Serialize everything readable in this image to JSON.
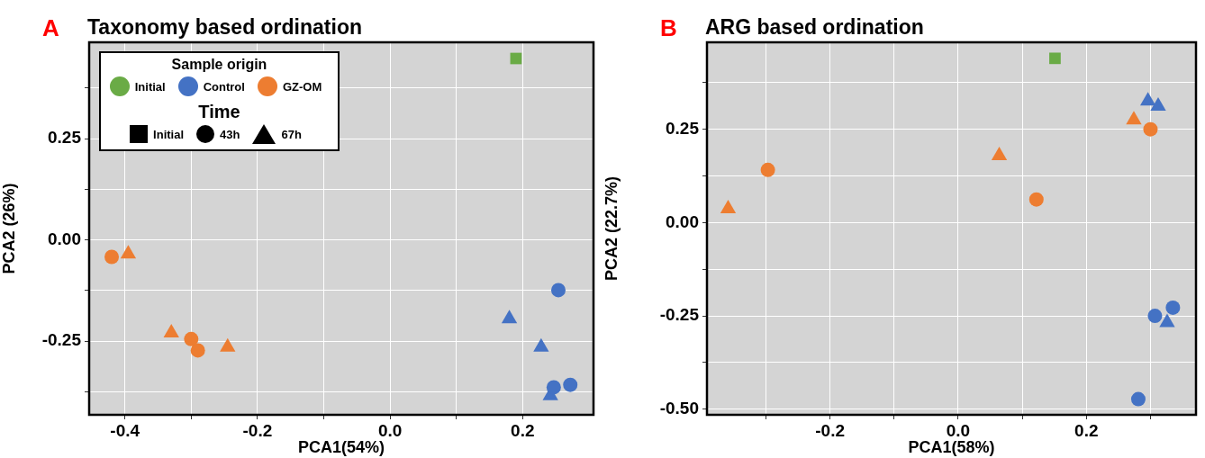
{
  "chart_data": [
    {
      "type": "scatter",
      "title": "Taxonomy based ordination",
      "xlabel": "PCA1(54%)",
      "ylabel": "PCA2 (26%)",
      "legend_title": "Sample origin",
      "annotations": [
        "A",
        "Time",
        "Initial",
        "43h",
        "67h"
      ],
      "xlim": [
        -0.454,
        0.307
      ],
      "xticks": [
        {
          "value": -0.4,
          "label": "-0.4"
        },
        {
          "value": -0.3,
          "label": null
        },
        {
          "value": -0.2,
          "label": "-0.2"
        },
        {
          "value": -0.1,
          "label": null
        },
        {
          "value": 0,
          "label": "0.0"
        },
        {
          "value": 0.1,
          "label": null
        },
        {
          "value": 0.2,
          "label": "0.2"
        }
      ],
      "ylim": [
        -0.432,
        0.488
      ],
      "yticks": [
        {
          "value": -0.375,
          "label": null
        },
        {
          "value": -0.25,
          "label": "-0.25"
        },
        {
          "value": -0.125,
          "label": null
        },
        {
          "value": 0,
          "label": "0.00"
        },
        {
          "value": 0.125,
          "label": null
        },
        {
          "value": 0.25,
          "label": "0.25"
        },
        {
          "value": 0.375,
          "label": null
        }
      ],
      "grid": true,
      "legend": "top left",
      "series": [
        {
          "name": "Initial",
          "color": "#6aab46",
          "marker": "square",
          "x": [
            0.19
          ],
          "values": [
            0.448
          ]
        },
        {
          "name": "Control",
          "color": "#4472c4",
          "marker": "circle",
          "x": [
            0.254,
            0.247,
            0.272
          ],
          "values": [
            -0.124,
            -0.364,
            -0.358
          ]
        },
        {
          "color": "#4472c4",
          "marker": "triangle",
          "x": [
            0.18,
            0.228,
            0.242
          ],
          "values": [
            -0.195,
            -0.265,
            -0.385
          ]
        },
        {
          "name": "GZ-OM",
          "color": "#ed7d31",
          "marker": "circle",
          "x": [
            -0.42,
            -0.3,
            -0.29
          ],
          "values": [
            -0.042,
            -0.245,
            -0.273
          ]
        },
        {
          "color": "#ed7d31",
          "marker": "triangle",
          "x": [
            -0.395,
            -0.33,
            -0.245
          ],
          "values": [
            -0.035,
            -0.23,
            -0.265
          ]
        }
      ]
    },
    {
      "type": "scatter",
      "title": "ARG based ordination",
      "xlabel": "PCA1(58%)",
      "ylabel": "PCA2 (22.7%)",
      "annotations": [
        "B"
      ],
      "xlim": [
        -0.392,
        0.371
      ],
      "xticks": [
        {
          "value": -0.3,
          "label": null
        },
        {
          "value": -0.2,
          "label": "-0.2"
        },
        {
          "value": -0.1,
          "label": null
        },
        {
          "value": 0,
          "label": "0.0"
        },
        {
          "value": 0.1,
          "label": null
        },
        {
          "value": 0.2,
          "label": "0.2"
        },
        {
          "value": 0.3,
          "label": null
        }
      ],
      "ylim": [
        -0.515,
        0.483
      ],
      "yticks": [
        {
          "value": -0.5,
          "label": "-0.50"
        },
        {
          "value": -0.375,
          "label": null
        },
        {
          "value": -0.25,
          "label": "-0.25"
        },
        {
          "value": -0.125,
          "label": null
        },
        {
          "value": 0,
          "label": "0.00"
        },
        {
          "value": 0.125,
          "label": null
        },
        {
          "value": 0.25,
          "label": "0.25"
        },
        {
          "value": 0.375,
          "label": null
        }
      ],
      "grid": true,
      "series": [
        {
          "color": "#6aab46",
          "marker": "square",
          "x": [
            0.151
          ],
          "values": [
            0.44
          ]
        },
        {
          "color": "#4472c4",
          "marker": "circle",
          "x": [
            0.335,
            0.307,
            0.281
          ],
          "values": [
            -0.228,
            -0.25,
            -0.473
          ]
        },
        {
          "color": "#4472c4",
          "marker": "triangle",
          "x": [
            0.296,
            0.312,
            0.326
          ],
          "values": [
            0.326,
            0.312,
            -0.268
          ]
        },
        {
          "color": "#ed7d31",
          "marker": "circle",
          "x": [
            0.3,
            -0.297,
            0.122
          ],
          "values": [
            0.25,
            0.141,
            0.062
          ]
        },
        {
          "color": "#ed7d31",
          "marker": "triangle",
          "x": [
            0.274,
            0.064,
            -0.359
          ],
          "values": [
            0.275,
            0.179,
            0.037
          ]
        }
      ]
    }
  ]
}
